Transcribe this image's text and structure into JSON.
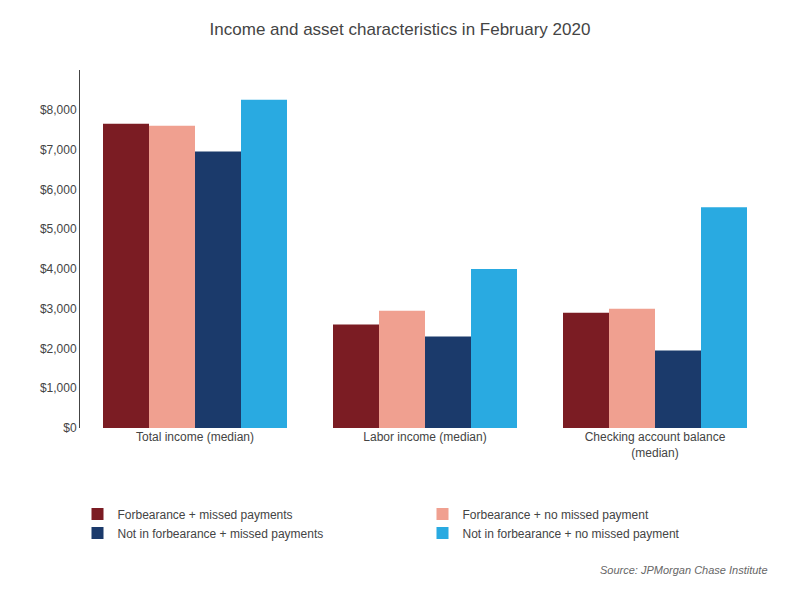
{
  "chart_data": {
    "type": "bar",
    "title": "Income and asset characteristics in February 2020",
    "categories": [
      "Total income (median)",
      "Labor income (median)",
      "Checking account balance\n(median)"
    ],
    "series": [
      {
        "name": "Forbearance + missed payments",
        "color": "#7B1C23",
        "values": [
          7650,
          2600,
          2900
        ]
      },
      {
        "name": "Forbearance + no missed payment",
        "color": "#F0A090",
        "values": [
          7600,
          2950,
          3000
        ]
      },
      {
        "name": "Not in forbearance + missed payments",
        "color": "#1B3A6B",
        "values": [
          6950,
          2300,
          1950
        ]
      },
      {
        "name": "Not in forbearance + no missed payment",
        "color": "#29AAE1",
        "values": [
          8250,
          4000,
          5550
        ]
      }
    ],
    "ylim": [
      0,
      9000
    ],
    "yticks": [
      {
        "value": 0,
        "label": "$0"
      },
      {
        "value": 1000,
        "label": "$1,000"
      },
      {
        "value": 2000,
        "label": "$2,000"
      },
      {
        "value": 3000,
        "label": "$3,000"
      },
      {
        "value": 4000,
        "label": "$4,000"
      },
      {
        "value": 5000,
        "label": "$5,000"
      },
      {
        "value": 6000,
        "label": "$6,000"
      },
      {
        "value": 7000,
        "label": "$7,000"
      },
      {
        "value": 8000,
        "label": "$8,000"
      }
    ],
    "grid": false,
    "legend": "bottom",
    "annotations": [
      "Source: JPMorgan Chase Institute"
    ]
  }
}
